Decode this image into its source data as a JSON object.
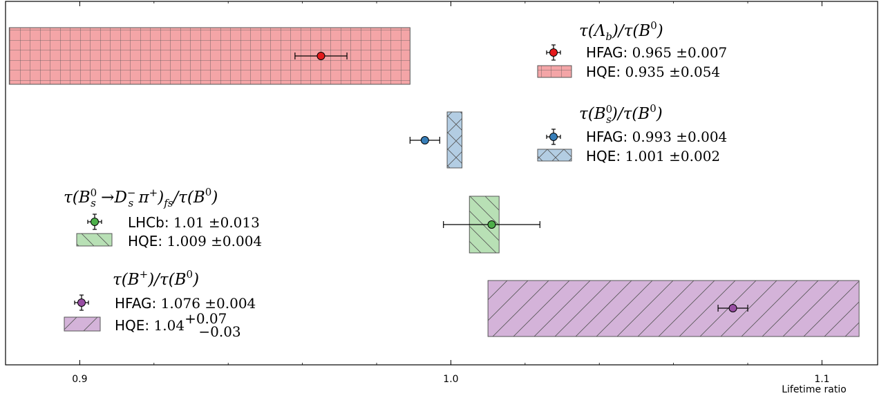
{
  "chart_data": {
    "type": "horizontal-interval",
    "xlabel": "Lifetime ratio",
    "xlim": [
      0.88,
      1.115
    ],
    "xticks": [
      {
        "value": 0.9,
        "label": "0.9"
      },
      {
        "value": 1.0,
        "label": "1.0"
      },
      {
        "value": 1.1,
        "label": "1.1"
      }
    ],
    "grid": false,
    "series": [
      {
        "key": "lambda",
        "title": "τ(Λ_b)/τ(B⁰)",
        "color": "#e41a1c",
        "fill": "#f4a5a7",
        "hatch": "grid",
        "measurement": {
          "source": "HFAG",
          "value_text": "0.965 ±0.007",
          "value": 0.965,
          "error": 0.007
        },
        "theory": {
          "source": "HQE",
          "value_text": "0.935 ±0.054",
          "value": 0.935,
          "error": 0.054
        },
        "legend_position": "top-right"
      },
      {
        "key": "bs",
        "title": "τ(B_s⁰)/τ(B⁰)",
        "color": "#377eb8",
        "fill": "#b3cde3",
        "hatch": "cross",
        "measurement": {
          "source": "HFAG",
          "value_text": "0.993 ±0.004",
          "value": 0.993,
          "error": 0.004
        },
        "theory": {
          "source": "HQE",
          "value_text": "1.001 ±0.002",
          "value": 1.001,
          "error": 0.002
        },
        "legend_position": "right"
      },
      {
        "key": "ds",
        "title": "τ(B_s⁰ →D_s⁻ π⁺)_fs/τ(B⁰)",
        "color": "#4daf4a",
        "fill": "#b8e0b5",
        "hatch": "backslash",
        "measurement": {
          "source": "LHCb",
          "value_text": "1.01 ±0.013",
          "value": 1.011,
          "error": 0.013
        },
        "theory": {
          "source": "HQE",
          "value_text": "1.009 ±0.004",
          "value": 1.009,
          "error": 0.004
        },
        "legend_position": "left"
      },
      {
        "key": "bplus",
        "title": "τ(B⁺)/τ(B⁰)",
        "color": "#984ea3",
        "fill": "#d4b3d9",
        "hatch": "slash",
        "measurement": {
          "source": "HFAG",
          "value_text": "1.076 ±0.004",
          "value": 1.076,
          "error": 0.004
        },
        "theory": {
          "source": "HQE",
          "value_text": "1.04",
          "sup": "+0.07",
          "sub": "−0.03",
          "value": 1.04,
          "err_plus": 0.07,
          "err_minus": 0.03
        },
        "legend_position": "bottom-left"
      }
    ]
  }
}
